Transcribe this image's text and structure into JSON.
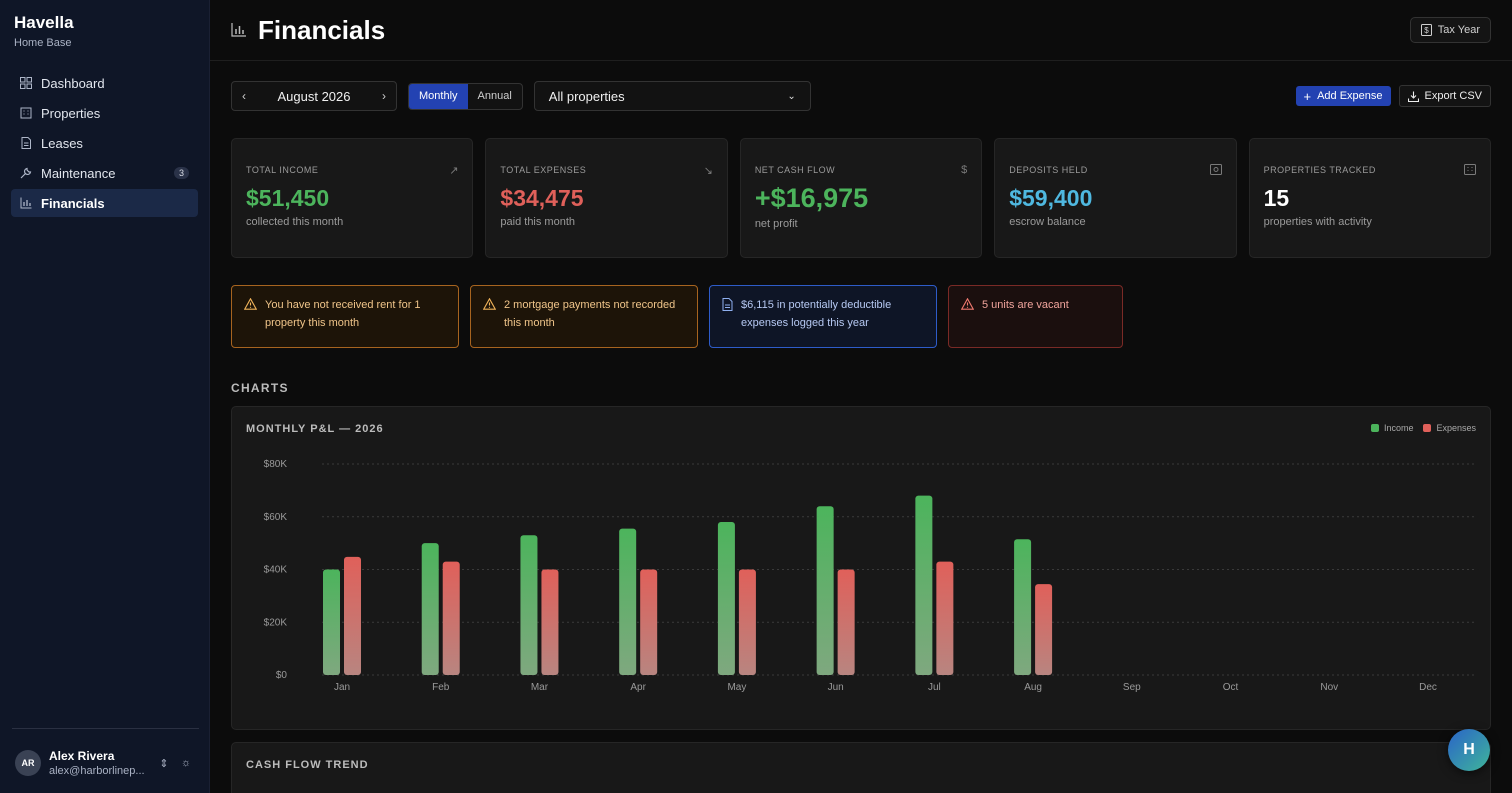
{
  "brand": {
    "title": "Havella",
    "subtitle": "Home Base"
  },
  "nav": [
    {
      "label": "Dashboard",
      "icon": "dashboard-icon"
    },
    {
      "label": "Properties",
      "icon": "building-icon"
    },
    {
      "label": "Leases",
      "icon": "document-icon"
    },
    {
      "label": "Maintenance",
      "icon": "wrench-icon",
      "badge": "3"
    },
    {
      "label": "Financials",
      "icon": "chart-icon",
      "active": true
    }
  ],
  "user": {
    "initials": "AR",
    "name": "Alex Rivera",
    "email": "alex@harborlinep..."
  },
  "header": {
    "title": "Financials",
    "tax_year_label": "Tax Year"
  },
  "controls": {
    "month": "August 2026",
    "view_monthly": "Monthly",
    "view_annual": "Annual",
    "property_filter": "All properties",
    "add_expense": "Add Expense",
    "export_csv": "Export CSV"
  },
  "stats": [
    {
      "label": "TOTAL INCOME",
      "value": "$51,450",
      "sub": "collected this month",
      "color": "#4cb45c",
      "icon": "trend-up-icon"
    },
    {
      "label": "TOTAL EXPENSES",
      "value": "$34,475",
      "sub": "paid this month",
      "color": "#e0605a",
      "icon": "trend-down-icon"
    },
    {
      "label": "NET CASH FLOW",
      "value": "+$16,975",
      "sub": "net profit",
      "color": "#4cb45c",
      "icon": "dollar-icon"
    },
    {
      "label": "DEPOSITS HELD",
      "value": "$59,400",
      "sub": "escrow balance",
      "color": "#4fb8e0",
      "icon": "safe-icon"
    },
    {
      "label": "PROPERTIES TRACKED",
      "value": "15",
      "sub": "properties with activity",
      "color": "#ffffff",
      "icon": "building-icon"
    }
  ],
  "alerts": [
    {
      "type": "warn",
      "text": "You have not received rent for 1 property this month"
    },
    {
      "type": "warn",
      "text": "2 mortgage payments not recorded this month"
    },
    {
      "type": "info",
      "text": "$6,115 in potentially deductible expenses logged this year"
    },
    {
      "type": "danger",
      "text": "5 units are vacant"
    }
  ],
  "section_title": "CHARTS",
  "chart_data": {
    "type": "bar",
    "title": "MONTHLY P&L — 2026",
    "categories": [
      "Jan",
      "Feb",
      "Mar",
      "Apr",
      "May",
      "Jun",
      "Jul",
      "Aug",
      "Sep",
      "Oct",
      "Nov",
      "Dec"
    ],
    "series": [
      {
        "name": "Income",
        "color": "#4cb45c",
        "values": [
          40000,
          50000,
          53000,
          55500,
          58000,
          64000,
          68000,
          51450,
          null,
          null,
          null,
          null
        ]
      },
      {
        "name": "Expenses",
        "color": "#e0605a",
        "values": [
          44800,
          43000,
          40000,
          40000,
          40000,
          40000,
          43000,
          34475,
          null,
          null,
          null,
          null
        ]
      }
    ],
    "y_ticks": [
      "$0",
      "$20K",
      "$40K",
      "$60K",
      "$80K"
    ],
    "ylim": [
      0,
      80000
    ],
    "grid": true,
    "legend": "top-right"
  },
  "cash_flow_title": "CASH FLOW TREND",
  "fab_label": "H"
}
